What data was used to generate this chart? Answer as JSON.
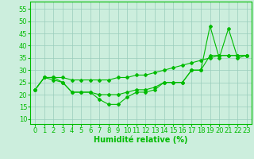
{
  "x": [
    0,
    1,
    2,
    3,
    4,
    5,
    6,
    7,
    8,
    9,
    10,
    11,
    12,
    13,
    14,
    15,
    16,
    17,
    18,
    19,
    20,
    21,
    22,
    23
  ],
  "line_straight": [
    22,
    27,
    27,
    27,
    26,
    26,
    26,
    26,
    26,
    27,
    27,
    28,
    28,
    29,
    30,
    31,
    32,
    33,
    34,
    35,
    36,
    36,
    36,
    36
  ],
  "line_mid": [
    22,
    27,
    27,
    25,
    21,
    21,
    21,
    20,
    20,
    20,
    21,
    22,
    22,
    23,
    25,
    25,
    25,
    30,
    30,
    36,
    36,
    36,
    36,
    36
  ],
  "line_jagged": [
    22,
    27,
    26,
    25,
    21,
    21,
    21,
    18,
    16,
    16,
    19,
    21,
    21,
    22,
    25,
    25,
    25,
    30,
    30,
    48,
    35,
    47,
    35,
    36
  ],
  "bg_color": "#cceedd",
  "grid_color": "#99ccbb",
  "line_color": "#00bb00",
  "xlabel": "Humidité relative (%)",
  "ylim": [
    8,
    58
  ],
  "xlim": [
    -0.5,
    23.5
  ],
  "yticks": [
    10,
    15,
    20,
    25,
    30,
    35,
    40,
    45,
    50,
    55
  ],
  "xticks": [
    0,
    1,
    2,
    3,
    4,
    5,
    6,
    7,
    8,
    9,
    10,
    11,
    12,
    13,
    14,
    15,
    16,
    17,
    18,
    19,
    20,
    21,
    22,
    23
  ],
  "axis_fontsize": 6,
  "marker": "D",
  "marker_size": 2.0,
  "linewidth": 0.8
}
